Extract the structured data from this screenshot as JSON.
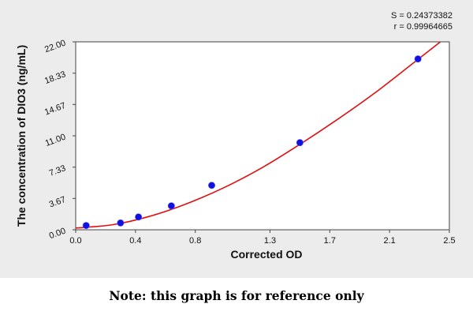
{
  "chart_data": {
    "type": "scatter",
    "xlabel": "Corrected OD",
    "ylabel": "The concentration of DIO3 (ng/mL)",
    "xlim": [
      0.0,
      2.5
    ],
    "ylim": [
      0.0,
      22.0
    ],
    "x_ticks": [
      "0.0",
      "0.4",
      "0.8",
      "1.3",
      "1.7",
      "2.1",
      "2.5"
    ],
    "x_tick_values": [
      0.0,
      0.4,
      0.8,
      1.3,
      1.7,
      2.1,
      2.5
    ],
    "y_ticks": [
      "0.00",
      "3.67",
      "7.33",
      "11.00",
      "14.67",
      "18.33",
      "22.00"
    ],
    "y_tick_values": [
      0.0,
      3.67,
      7.33,
      11.0,
      14.67,
      18.33,
      22.0
    ],
    "grid": false,
    "points": {
      "x": [
        0.07,
        0.3,
        0.42,
        0.64,
        0.91,
        1.5,
        2.29
      ],
      "y": [
        0.5,
        0.8,
        1.5,
        2.8,
        5.2,
        10.2,
        20.0
      ],
      "color": "#1010e0"
    },
    "fit_curve": {
      "color": "#e01010",
      "x": [
        0.0,
        0.25,
        0.5,
        0.75,
        1.0,
        1.25,
        1.5,
        1.75,
        2.0,
        2.25,
        2.44
      ],
      "y": [
        0.2,
        0.6,
        1.6,
        3.1,
        5.0,
        7.3,
        10.0,
        12.9,
        16.0,
        19.4,
        22.0
      ]
    },
    "annotations": {
      "s": "S = 0.24373382",
      "r": "r = 0.99964665"
    }
  },
  "note": "Note: this graph is for reference only"
}
